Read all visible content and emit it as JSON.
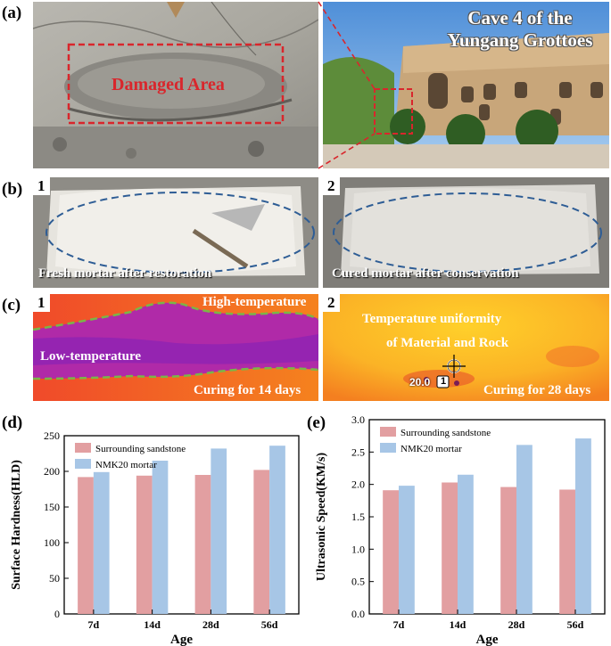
{
  "panel_labels": {
    "a": "(a)",
    "b": "(b)",
    "c": "(c)",
    "d": "(d)",
    "e": "(e)"
  },
  "panel_a": {
    "damaged_label": "Damaged Area",
    "cave_title_line1": "Cave 4 of the",
    "cave_title_line2": "Yungang Grottoes"
  },
  "panel_b": {
    "num1": "1",
    "num2": "2",
    "caption1": "Fresh mortar after restoration",
    "caption2": "Cured mortar after conservation"
  },
  "panel_c": {
    "num1": "1",
    "num2": "2",
    "high_temp": "High-temperature",
    "low_temp": "Low-temperature",
    "curing1": "Curing for 14 days",
    "uniformity_line1": "Temperature uniformity",
    "uniformity_line2": "of Material and Rock",
    "reading": "20.0",
    "marker": "1",
    "curing2": "Curing for 28 days"
  },
  "colors": {
    "sandstone": "#e29fa1",
    "mortar": "#a7c6e6",
    "annotation_red": "#d9262c"
  },
  "chart_data": [
    {
      "type": "bar",
      "categories": [
        "7d",
        "14d",
        "28d",
        "56d"
      ],
      "series": [
        {
          "name": "Surrounding sandstone",
          "values": [
            192,
            194,
            195,
            202
          ]
        },
        {
          "name": "NMK20 mortar",
          "values": [
            199,
            215,
            232,
            236
          ]
        }
      ],
      "xlabel": "Age",
      "ylabel": "Surface Hardness(HLD)",
      "ylim": [
        0,
        250
      ],
      "yticks": [
        "0",
        "50",
        "100",
        "150",
        "200",
        "250"
      ],
      "legend": "top-left"
    },
    {
      "type": "bar",
      "categories": [
        "7d",
        "14d",
        "28d",
        "56d"
      ],
      "series": [
        {
          "name": "Surrounding sandstone",
          "values": [
            1.91,
            2.03,
            1.96,
            1.92
          ]
        },
        {
          "name": "NMK20 mortar",
          "values": [
            1.98,
            2.15,
            2.61,
            2.71
          ]
        }
      ],
      "xlabel": "Age",
      "ylabel": "Ultrasonic Speed(KM/s)",
      "ylim": [
        0,
        3.0
      ],
      "yticks": [
        "0.0",
        "0.5",
        "1.0",
        "1.5",
        "2.0",
        "2.5",
        "3.0"
      ],
      "legend": "top-left"
    }
  ]
}
